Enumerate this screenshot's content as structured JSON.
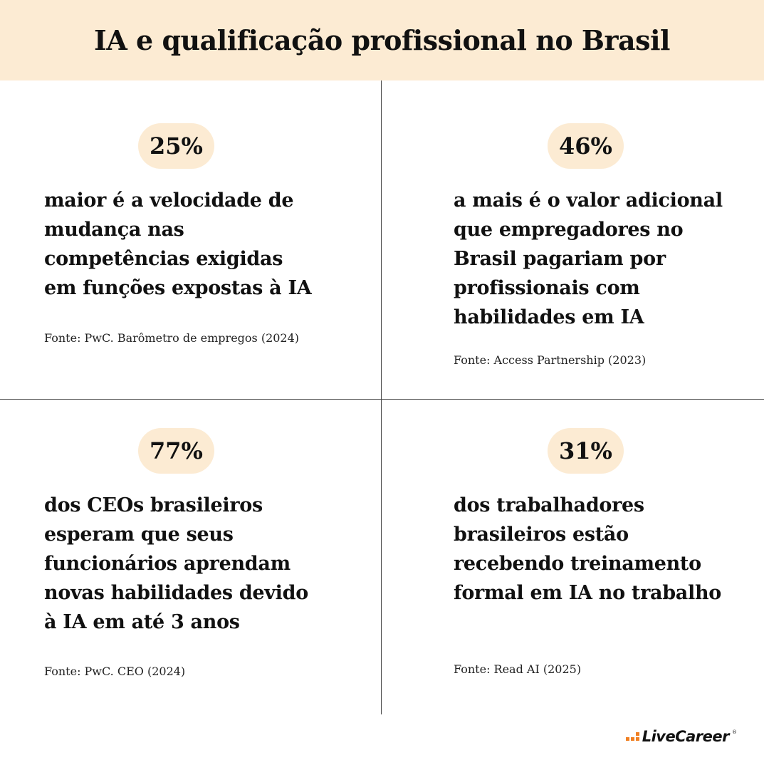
{
  "title": "IA e qualificação profissional no Brasil",
  "colors": {
    "accent_bg": "#fcebd3",
    "logo_accent": "#f07f22"
  },
  "stats": [
    {
      "value": "25%",
      "lines": [
        "maior é a velocidade de",
        "mudança nas",
        "competências exigidas",
        "em funções expostas à IA"
      ],
      "source": "Fonte: PwC. Barômetro de empregos (2024)"
    },
    {
      "value": "46%",
      "lines": [
        "a mais é o valor adicional",
        "que empregadores no",
        "Brasil pagariam por",
        "profissionais com",
        "habilidades em IA"
      ],
      "source": "Fonte: Access Partnership (2023)"
    },
    {
      "value": "77%",
      "lines": [
        "dos CEOs brasileiros",
        "esperam que seus",
        "funcionários aprendam",
        "novas habilidades devido",
        "à IA em até 3 anos"
      ],
      "source": "Fonte: PwC. CEO (2024)"
    },
    {
      "value": "31%",
      "lines": [
        "dos trabalhadores",
        "brasileiros estão",
        "recebendo treinamento",
        "formal em IA no trabalho"
      ],
      "source": "Fonte: Read AI (2025)"
    }
  ],
  "logo": {
    "text": "LiveCareer",
    "mark": "®"
  }
}
